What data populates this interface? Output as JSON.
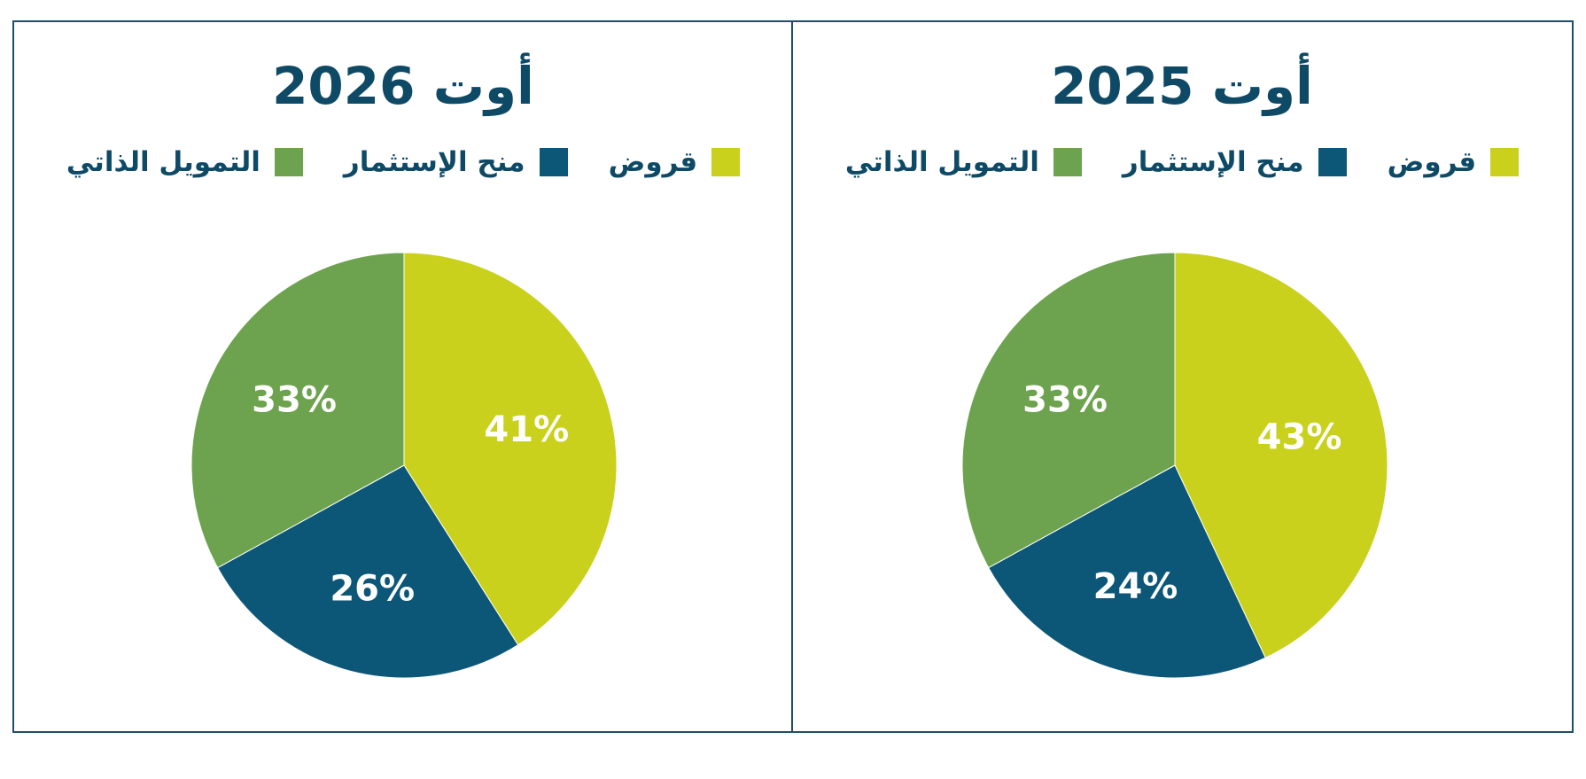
{
  "colors": {
    "loans": "#c9d11c",
    "grants": "#0c5677",
    "self": "#6da34e",
    "title": "#0e4a66",
    "border": "#1f4e6b"
  },
  "legend": [
    {
      "label": "قروض",
      "color_key": "loans"
    },
    {
      "label": "منح الإستثمار",
      "color_key": "grants"
    },
    {
      "label": "التمويل الذاتي",
      "color_key": "self"
    }
  ],
  "chart_data": [
    {
      "type": "pie",
      "title": "أوت 2025",
      "slices": [
        {
          "name": "قروض",
          "value": 43,
          "label": "43%",
          "color_key": "loans"
        },
        {
          "name": "منح الإستثمار",
          "value": 24,
          "label": "24%",
          "color_key": "grants"
        },
        {
          "name": "التمويل الذاتي",
          "value": 33,
          "label": "33%",
          "color_key": "self"
        }
      ]
    },
    {
      "type": "pie",
      "title": "أوت 2026",
      "slices": [
        {
          "name": "قروض",
          "value": 41,
          "label": "41%",
          "color_key": "loans"
        },
        {
          "name": "منح الإستثمار",
          "value": 26,
          "label": "26%",
          "color_key": "grants"
        },
        {
          "name": "التمويل الذاتي",
          "value": 33,
          "label": "33%",
          "color_key": "self"
        }
      ]
    }
  ]
}
